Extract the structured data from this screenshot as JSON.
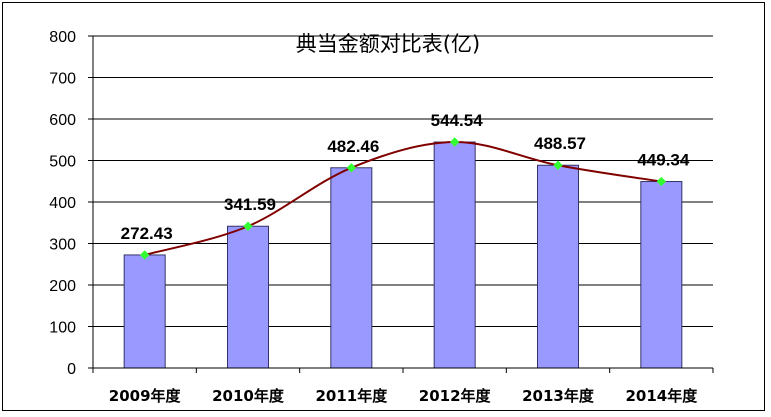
{
  "chart_data": {
    "type": "bar",
    "title": "典当金额对比表(亿)",
    "categories": [
      "2009年度",
      "2010年度",
      "2011年度",
      "2012年度",
      "2013年度",
      "2014年度"
    ],
    "values": [
      272.43,
      341.59,
      482.46,
      544.54,
      488.57,
      449.34
    ],
    "data_labels": [
      "272.43",
      "341.59",
      "482.46",
      "544.54",
      "488.57",
      "449.34"
    ],
    "overlay_line": true,
    "ylim": [
      0,
      800
    ],
    "yticks": [
      0,
      100,
      200,
      300,
      400,
      500,
      600,
      700,
      800
    ],
    "grid": true,
    "legend": "none",
    "colors": {
      "bar_fill": "#9999FF",
      "bar_stroke": "#333366",
      "line": "#800000",
      "marker": "#33FF33",
      "grid": "#000000"
    }
  }
}
